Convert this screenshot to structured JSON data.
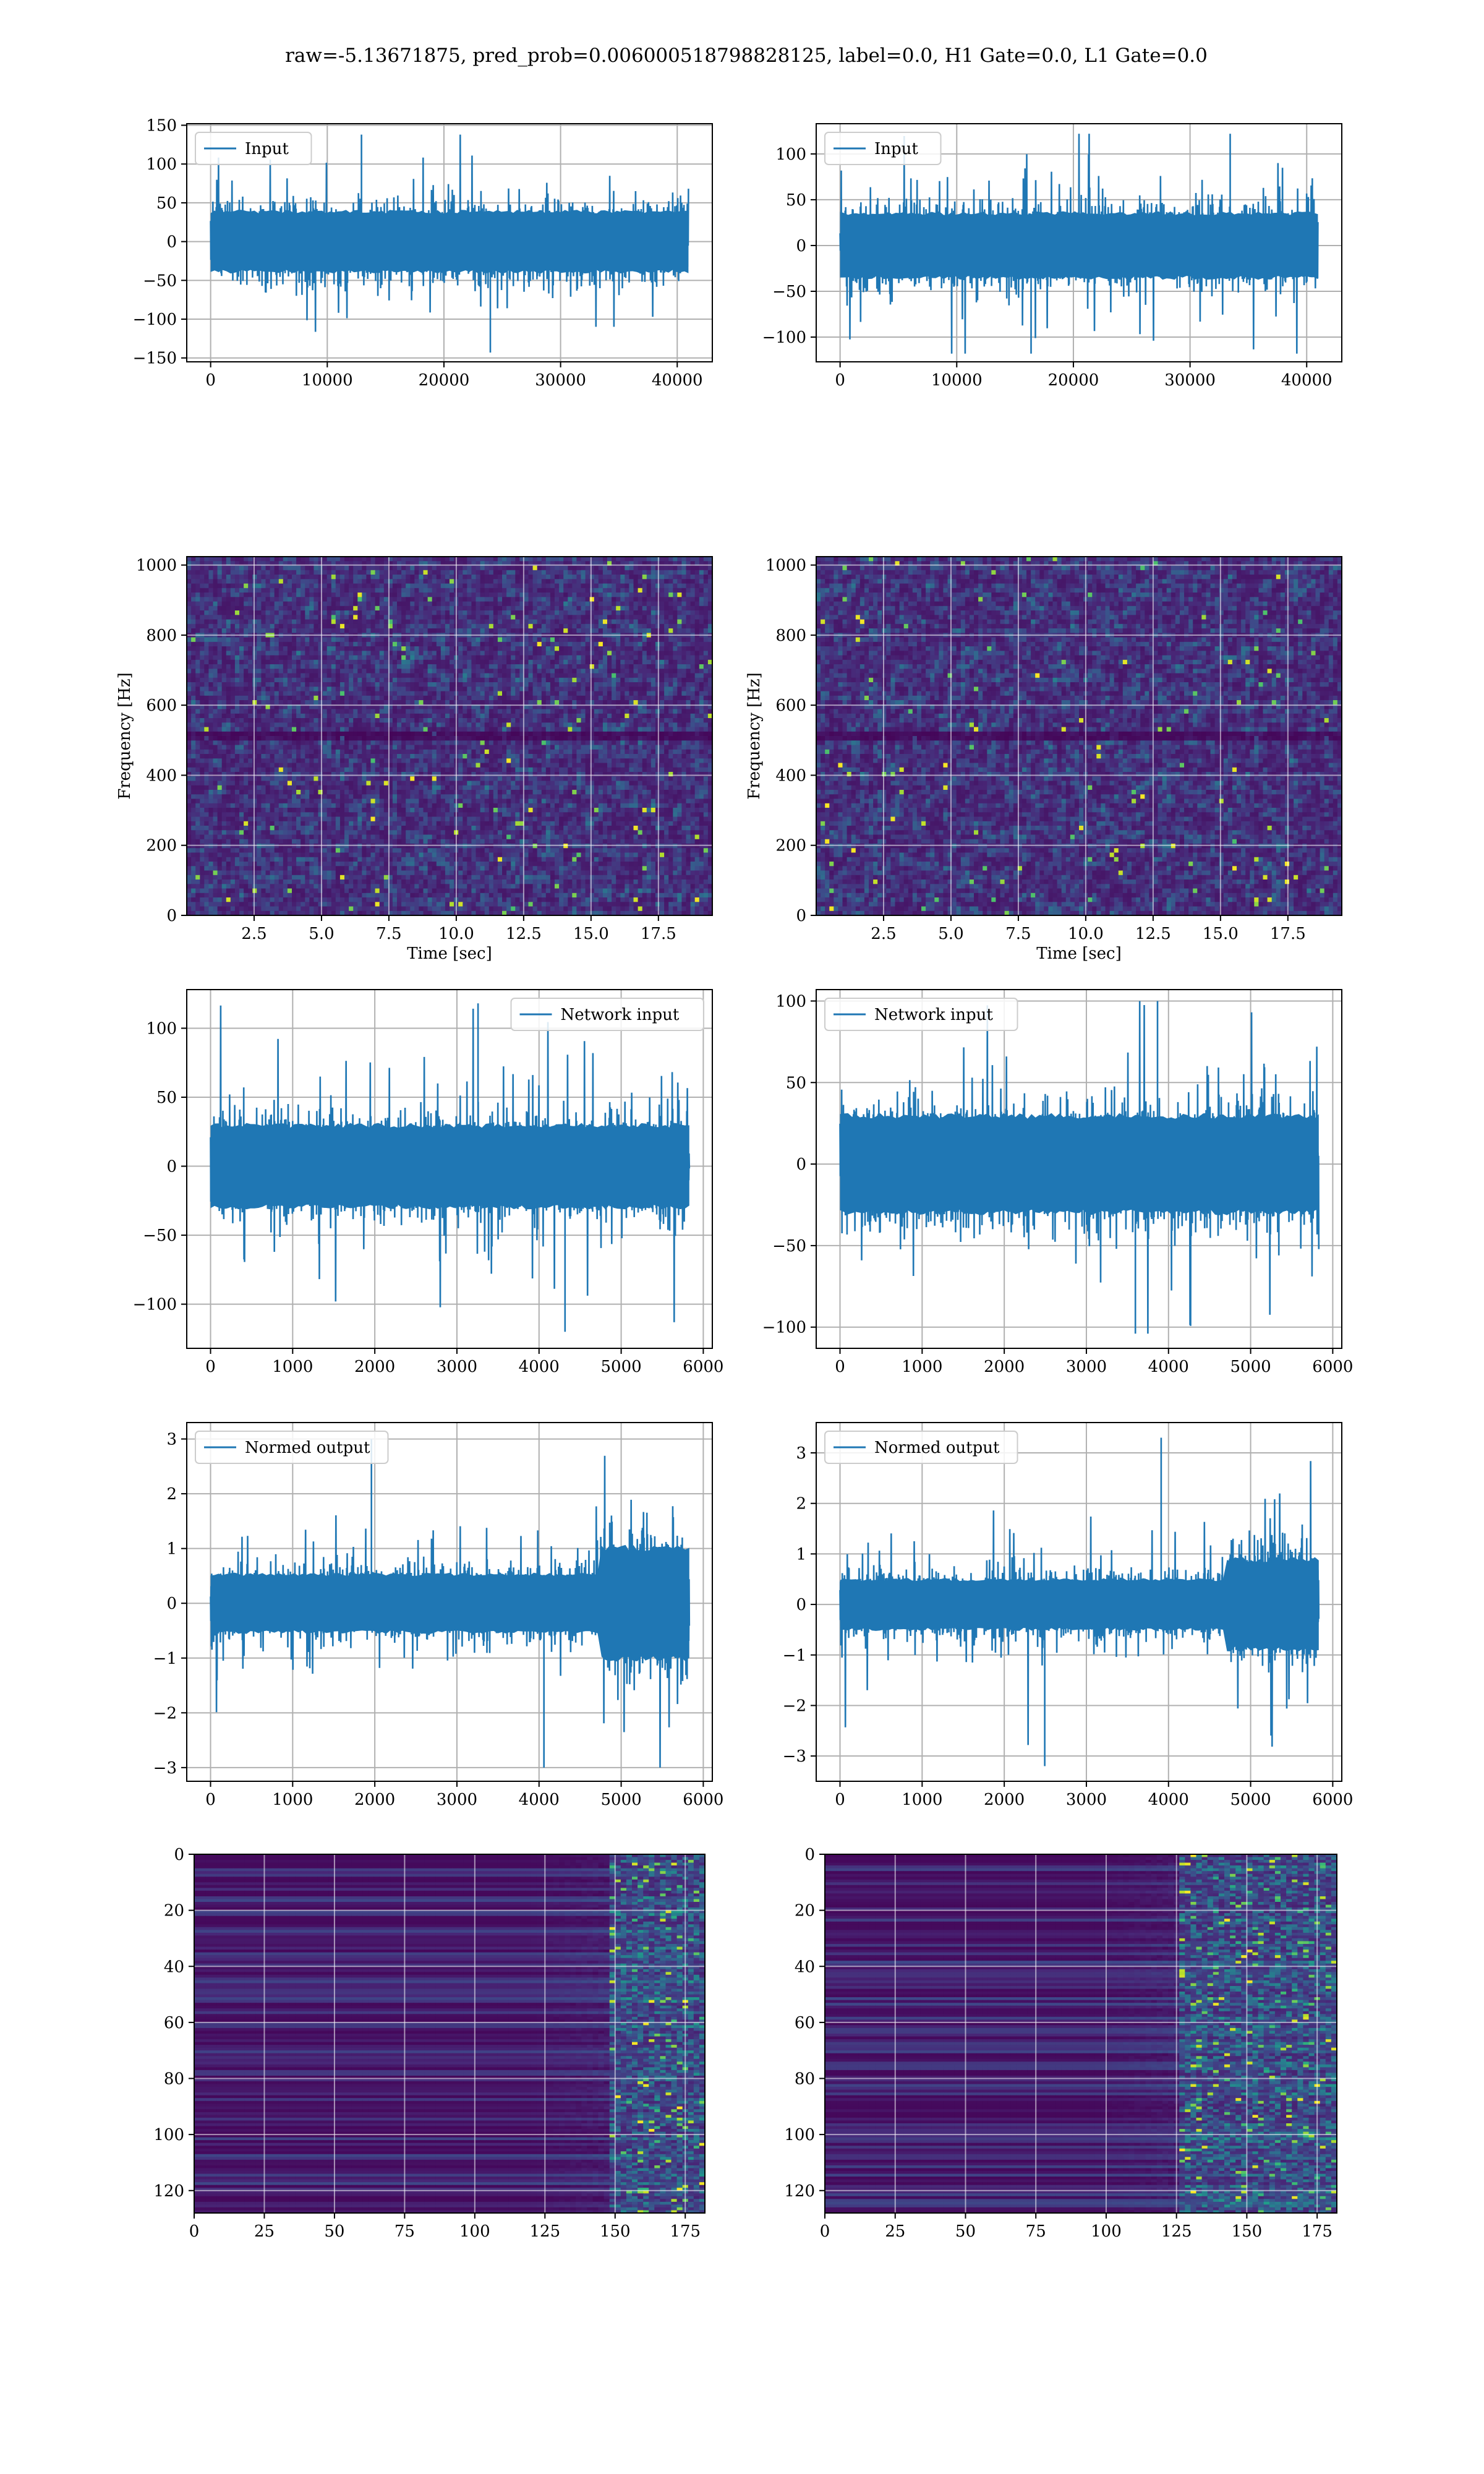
{
  "figure": {
    "title": "raw=-5.13671875, pred_prob=0.006000518798828125, label=0.0, H1 Gate=0.0, L1 Gate=0.0"
  },
  "colors": {
    "series": "#1f77b4",
    "grid": "#b0b0b0",
    "frame": "#000000",
    "legend_border": "#cccccc",
    "viridis_low": "#440154",
    "viridis_mid": "#21918c",
    "viridis_high": "#fde725"
  },
  "chart_data": [
    {
      "id": "input-h1",
      "type": "line",
      "legend": "Input",
      "legend_loc": "upper-left",
      "xlim": [
        -2048,
        43008
      ],
      "ylim": [
        -155,
        152
      ],
      "xticks": [
        0,
        10000,
        20000,
        30000,
        40000
      ],
      "xtick_labels": [
        "0",
        "10000",
        "20000",
        "30000",
        "40000"
      ],
      "yticks": [
        -150,
        -100,
        -50,
        0,
        50,
        100,
        150
      ],
      "ytick_labels": [
        "−150",
        "−100",
        "−50",
        "0",
        "50",
        "100",
        "150"
      ],
      "signal": {
        "x_start": 0,
        "x_end": 40960,
        "core": 55,
        "spike_max": 138,
        "spike_min": -143,
        "segments": []
      },
      "grid": true
    },
    {
      "id": "input-l1",
      "type": "line",
      "legend": "Input",
      "legend_loc": "upper-left",
      "xlim": [
        -2048,
        43008
      ],
      "ylim": [
        -127,
        133
      ],
      "xticks": [
        0,
        10000,
        20000,
        30000,
        40000
      ],
      "xtick_labels": [
        "0",
        "10000",
        "20000",
        "30000",
        "40000"
      ],
      "yticks": [
        -100,
        -50,
        0,
        50,
        100
      ],
      "ytick_labels": [
        "−100",
        "−50",
        "0",
        "50",
        "100"
      ],
      "signal": {
        "x_start": 0,
        "x_end": 40960,
        "core": 50,
        "spike_max": 122,
        "spike_min": -118,
        "segments": []
      },
      "grid": true
    },
    {
      "id": "spectrogram-h1",
      "type": "heatmap",
      "xlabel": "Time [sec]",
      "ylabel": "Frequency [Hz]",
      "xlim": [
        0,
        19.5
      ],
      "ylim": [
        0,
        1024
      ],
      "xticks": [
        2.5,
        5,
        7.5,
        10,
        12.5,
        15,
        17.5
      ],
      "xtick_labels": [
        "2.5",
        "5.0",
        "7.5",
        "10.0",
        "12.5",
        "15.0",
        "17.5"
      ],
      "yticks": [
        0,
        200,
        400,
        600,
        800,
        1000
      ],
      "ytick_labels": [
        "0",
        "200",
        "400",
        "600",
        "800",
        "1000"
      ],
      "colormap": "viridis",
      "grid": true,
      "pattern": "noise-with-band",
      "dark_band_hz": [
        492,
        512
      ]
    },
    {
      "id": "spectrogram-l1",
      "type": "heatmap",
      "xlabel": "Time [sec]",
      "ylabel": "Frequency [Hz]",
      "xlim": [
        0,
        19.5
      ],
      "ylim": [
        0,
        1024
      ],
      "xticks": [
        2.5,
        5,
        7.5,
        10,
        12.5,
        15,
        17.5
      ],
      "xtick_labels": [
        "2.5",
        "5.0",
        "7.5",
        "10.0",
        "12.5",
        "15.0",
        "17.5"
      ],
      "yticks": [
        0,
        200,
        400,
        600,
        800,
        1000
      ],
      "ytick_labels": [
        "0",
        "200",
        "400",
        "600",
        "800",
        "1000"
      ],
      "colormap": "viridis",
      "grid": true,
      "pattern": "noise-with-band",
      "dark_band_hz": [
        492,
        512
      ]
    },
    {
      "id": "network-input-h1",
      "type": "line",
      "legend": "Network input",
      "legend_loc": "upper-right",
      "xlim": [
        -290,
        6110
      ],
      "ylim": [
        -132,
        128
      ],
      "xticks": [
        0,
        1000,
        2000,
        3000,
        4000,
        5000,
        6000
      ],
      "xtick_labels": [
        "0",
        "1000",
        "2000",
        "3000",
        "4000",
        "5000",
        "6000"
      ],
      "yticks": [
        -100,
        -50,
        0,
        50,
        100
      ],
      "ytick_labels": [
        "−100",
        "−50",
        "0",
        "50",
        "100"
      ],
      "signal": {
        "x_start": 0,
        "x_end": 5830,
        "core": 42,
        "spike_max": 118,
        "spike_min": -120,
        "segments": []
      },
      "grid": true
    },
    {
      "id": "network-input-l1",
      "type": "line",
      "legend": "Network input",
      "legend_loc": "upper-left",
      "xlim": [
        -290,
        6110
      ],
      "ylim": [
        -113,
        107
      ],
      "xticks": [
        0,
        1000,
        2000,
        3000,
        4000,
        5000,
        6000
      ],
      "xtick_labels": [
        "0",
        "1000",
        "2000",
        "3000",
        "4000",
        "5000",
        "6000"
      ],
      "yticks": [
        -100,
        -50,
        0,
        50,
        100
      ],
      "ytick_labels": [
        "−100",
        "−50",
        "0",
        "50",
        "100"
      ],
      "signal": {
        "x_start": 0,
        "x_end": 5830,
        "core": 42,
        "spike_max": 100,
        "spike_min": -104,
        "segments": []
      },
      "grid": true
    },
    {
      "id": "normed-output-h1",
      "type": "line",
      "legend": "Normed output",
      "legend_loc": "upper-left",
      "xlim": [
        -290,
        6110
      ],
      "ylim": [
        -3.25,
        3.3
      ],
      "xticks": [
        0,
        1000,
        2000,
        3000,
        4000,
        5000,
        6000
      ],
      "xtick_labels": [
        "0",
        "1000",
        "2000",
        "3000",
        "4000",
        "5000",
        "6000"
      ],
      "yticks": [
        -3,
        -2,
        -1,
        0,
        1,
        2,
        3
      ],
      "ytick_labels": [
        "−3",
        "−2",
        "−1",
        "0",
        "1",
        "2",
        "3"
      ],
      "signal": {
        "x_start": 0,
        "x_end": 5830,
        "core": 0.75,
        "spike_max": 3.0,
        "spike_min": -3.0,
        "segments": [
          {
            "from": 4750,
            "to": 5830,
            "scale": 1.9
          }
        ]
      },
      "grid": true
    },
    {
      "id": "normed-output-l1",
      "type": "line",
      "legend": "Normed output",
      "legend_loc": "upper-left",
      "xlim": [
        -290,
        6110
      ],
      "ylim": [
        -3.5,
        3.6
      ],
      "xticks": [
        0,
        1000,
        2000,
        3000,
        4000,
        5000,
        6000
      ],
      "xtick_labels": [
        "0",
        "1000",
        "2000",
        "3000",
        "4000",
        "5000",
        "6000"
      ],
      "yticks": [
        -3,
        -2,
        -1,
        0,
        1,
        2,
        3
      ],
      "ytick_labels": [
        "−3",
        "−2",
        "−1",
        "0",
        "1",
        "2",
        "3"
      ],
      "signal": {
        "x_start": 0,
        "x_end": 5830,
        "core": 0.7,
        "spike_max": 3.3,
        "spike_min": -3.2,
        "segments": [
          {
            "from": 4700,
            "to": 5830,
            "scale": 1.8
          }
        ]
      },
      "grid": true
    },
    {
      "id": "feature-map-h1",
      "type": "heatmap",
      "xlim": [
        0,
        182
      ],
      "ylim": [
        128,
        0
      ],
      "xticks": [
        0,
        25,
        50,
        75,
        100,
        125,
        150,
        175
      ],
      "xtick_labels": [
        "0",
        "25",
        "50",
        "75",
        "100",
        "125",
        "150",
        "175"
      ],
      "yticks": [
        0,
        20,
        40,
        60,
        80,
        100,
        120
      ],
      "ytick_labels": [
        "0",
        "20",
        "40",
        "60",
        "80",
        "100",
        "120"
      ],
      "colormap": "viridis",
      "grid": true,
      "pattern": "rows-then-burst",
      "burst_start": 148
    },
    {
      "id": "feature-map-l1",
      "type": "heatmap",
      "xlim": [
        0,
        182
      ],
      "ylim": [
        128,
        0
      ],
      "xticks": [
        0,
        25,
        50,
        75,
        100,
        125,
        150,
        175
      ],
      "xtick_labels": [
        "0",
        "25",
        "50",
        "75",
        "100",
        "125",
        "150",
        "175"
      ],
      "yticks": [
        0,
        20,
        40,
        60,
        80,
        100,
        120
      ],
      "ytick_labels": [
        "0",
        "20",
        "40",
        "60",
        "80",
        "100",
        "120"
      ],
      "colormap": "viridis",
      "grid": true,
      "pattern": "rows-then-burst",
      "burst_start": 125
    }
  ]
}
